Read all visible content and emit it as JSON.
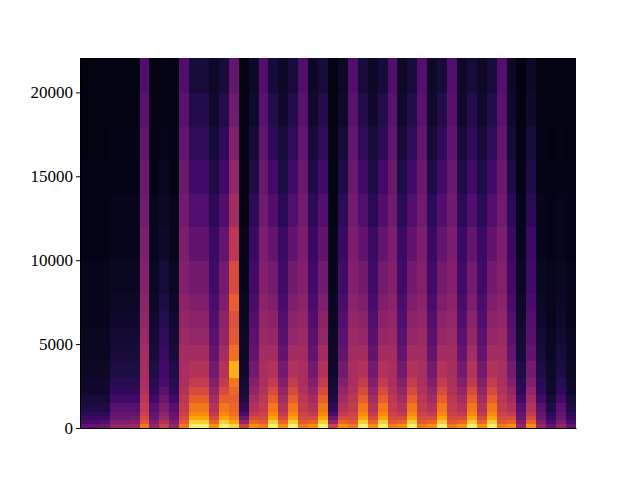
{
  "chart_data": {
    "type": "heatmap",
    "color": "Inferno",
    "z_range": [
      0,
      100
    ],
    "tick_labels": "y",
    "xlim": [
      0,
      50
    ],
    "xticks": [],
    "ylim": [
      0,
      22050
    ],
    "yticks": [
      0,
      5000,
      10000,
      15000,
      20000
    ],
    "y_bins": [
      0,
      250,
      500,
      750,
      1000,
      1500,
      2000,
      2500,
      3000,
      4000,
      5000,
      6000,
      7000,
      8000,
      10000,
      12000,
      14000,
      16000,
      18000,
      20000,
      22050
    ],
    "cells": [
      [
        28,
        22,
        18,
        15,
        12,
        10,
        8,
        8,
        7,
        6,
        6,
        5,
        5,
        5,
        4,
        4,
        4,
        3,
        3,
        3
      ],
      [
        28,
        22,
        18,
        15,
        12,
        10,
        8,
        8,
        7,
        6,
        6,
        5,
        5,
        5,
        4,
        4,
        4,
        3,
        3,
        3
      ],
      [
        30,
        24,
        18,
        15,
        12,
        10,
        8,
        8,
        7,
        6,
        6,
        5,
        5,
        5,
        4,
        4,
        4,
        3,
        3,
        3
      ],
      [
        40,
        35,
        30,
        28,
        25,
        20,
        16,
        14,
        12,
        10,
        9,
        8,
        7,
        6,
        5,
        5,
        4,
        4,
        3,
        3
      ],
      [
        40,
        35,
        30,
        28,
        25,
        20,
        16,
        14,
        12,
        10,
        9,
        8,
        7,
        6,
        5,
        5,
        4,
        4,
        3,
        3
      ],
      [
        42,
        36,
        32,
        28,
        25,
        20,
        16,
        14,
        12,
        10,
        9,
        8,
        7,
        6,
        5,
        5,
        4,
        4,
        3,
        3
      ],
      [
        70,
        62,
        58,
        55,
        52,
        50,
        48,
        46,
        45,
        44,
        42,
        40,
        38,
        36,
        34,
        32,
        30,
        28,
        26,
        24
      ],
      [
        40,
        35,
        30,
        28,
        25,
        20,
        16,
        14,
        12,
        10,
        9,
        8,
        7,
        6,
        5,
        5,
        4,
        4,
        3,
        3
      ],
      [
        55,
        48,
        42,
        38,
        34,
        30,
        26,
        22,
        20,
        18,
        16,
        14,
        12,
        10,
        8,
        7,
        6,
        5,
        4,
        4
      ],
      [
        40,
        35,
        30,
        28,
        25,
        20,
        16,
        14,
        12,
        10,
        9,
        8,
        7,
        6,
        5,
        5,
        4,
        4,
        3,
        3
      ],
      [
        70,
        62,
        58,
        55,
        52,
        50,
        48,
        46,
        45,
        44,
        42,
        40,
        38,
        36,
        34,
        32,
        30,
        28,
        26,
        24
      ],
      [
        95,
        88,
        80,
        74,
        70,
        64,
        58,
        52,
        48,
        44,
        40,
        38,
        35,
        32,
        28,
        24,
        20,
        16,
        13,
        10
      ],
      [
        95,
        88,
        80,
        74,
        70,
        64,
        58,
        52,
        48,
        44,
        40,
        38,
        35,
        32,
        28,
        24,
        20,
        16,
        13,
        10
      ],
      [
        75,
        65,
        58,
        52,
        48,
        44,
        40,
        36,
        32,
        28,
        26,
        24,
        22,
        20,
        18,
        15,
        12,
        10,
        8,
        7
      ],
      [
        95,
        88,
        80,
        74,
        70,
        64,
        58,
        52,
        48,
        44,
        40,
        38,
        35,
        32,
        28,
        24,
        20,
        16,
        13,
        10
      ],
      [
        90,
        80,
        72,
        68,
        66,
        64,
        66,
        70,
        82,
        68,
        62,
        60,
        64,
        58,
        50,
        44,
        40,
        36,
        32,
        28
      ],
      [
        55,
        40,
        30,
        22,
        16,
        12,
        10,
        9,
        8,
        7,
        7,
        6,
        6,
        5,
        5,
        4,
        4,
        4,
        3,
        3
      ],
      [
        75,
        65,
        58,
        52,
        48,
        44,
        40,
        36,
        32,
        28,
        26,
        24,
        22,
        20,
        18,
        15,
        12,
        10,
        8,
        7
      ],
      [
        70,
        62,
        58,
        55,
        52,
        50,
        48,
        46,
        45,
        44,
        42,
        40,
        38,
        36,
        34,
        32,
        30,
        28,
        26,
        24
      ],
      [
        95,
        88,
        80,
        74,
        70,
        64,
        58,
        52,
        48,
        44,
        40,
        38,
        35,
        32,
        28,
        24,
        20,
        16,
        13,
        10
      ],
      [
        75,
        65,
        58,
        52,
        48,
        44,
        40,
        36,
        32,
        28,
        26,
        24,
        22,
        20,
        18,
        15,
        12,
        10,
        8,
        7
      ],
      [
        95,
        88,
        80,
        74,
        70,
        64,
        58,
        52,
        48,
        44,
        40,
        38,
        35,
        32,
        28,
        24,
        20,
        16,
        13,
        10
      ],
      [
        70,
        62,
        58,
        55,
        52,
        50,
        48,
        46,
        45,
        44,
        42,
        40,
        38,
        36,
        34,
        32,
        30,
        28,
        26,
        24
      ],
      [
        75,
        65,
        58,
        52,
        48,
        44,
        40,
        36,
        32,
        28,
        26,
        24,
        22,
        20,
        18,
        15,
        12,
        10,
        8,
        7
      ],
      [
        95,
        88,
        80,
        74,
        70,
        64,
        58,
        52,
        48,
        44,
        40,
        38,
        35,
        32,
        28,
        24,
        20,
        16,
        13,
        10
      ],
      [
        55,
        40,
        30,
        22,
        16,
        12,
        10,
        9,
        8,
        7,
        7,
        6,
        6,
        5,
        5,
        4,
        4,
        4,
        3,
        3
      ],
      [
        75,
        65,
        58,
        52,
        48,
        44,
        40,
        36,
        32,
        28,
        26,
        24,
        22,
        20,
        18,
        15,
        12,
        10,
        8,
        7
      ],
      [
        70,
        62,
        58,
        55,
        52,
        50,
        48,
        46,
        45,
        44,
        42,
        40,
        38,
        36,
        34,
        32,
        30,
        28,
        26,
        24
      ],
      [
        95,
        88,
        80,
        74,
        70,
        64,
        58,
        52,
        48,
        44,
        40,
        38,
        35,
        32,
        28,
        24,
        20,
        16,
        13,
        10
      ],
      [
        75,
        65,
        58,
        52,
        48,
        44,
        40,
        36,
        32,
        28,
        26,
        24,
        22,
        20,
        18,
        15,
        12,
        10,
        8,
        7
      ],
      [
        95,
        88,
        80,
        74,
        70,
        64,
        58,
        52,
        48,
        44,
        40,
        38,
        35,
        32,
        28,
        24,
        20,
        16,
        13,
        10
      ],
      [
        70,
        62,
        58,
        55,
        52,
        50,
        48,
        46,
        45,
        44,
        42,
        40,
        38,
        36,
        34,
        32,
        30,
        28,
        26,
        24
      ],
      [
        75,
        65,
        58,
        52,
        48,
        44,
        40,
        36,
        32,
        28,
        26,
        24,
        22,
        20,
        18,
        15,
        12,
        10,
        8,
        7
      ],
      [
        95,
        88,
        80,
        74,
        70,
        64,
        58,
        52,
        48,
        44,
        40,
        38,
        35,
        32,
        28,
        24,
        20,
        16,
        13,
        10
      ],
      [
        70,
        62,
        58,
        55,
        52,
        50,
        48,
        46,
        45,
        44,
        42,
        40,
        38,
        36,
        34,
        32,
        30,
        28,
        26,
        24
      ],
      [
        75,
        65,
        58,
        52,
        48,
        44,
        40,
        36,
        32,
        28,
        26,
        24,
        22,
        20,
        18,
        15,
        12,
        10,
        8,
        7
      ],
      [
        95,
        88,
        80,
        74,
        70,
        64,
        58,
        52,
        48,
        44,
        40,
        38,
        35,
        32,
        28,
        24,
        20,
        16,
        13,
        10
      ],
      [
        70,
        62,
        58,
        55,
        52,
        50,
        48,
        46,
        45,
        44,
        42,
        40,
        38,
        36,
        34,
        32,
        30,
        28,
        26,
        24
      ],
      [
        75,
        65,
        58,
        52,
        48,
        44,
        40,
        36,
        32,
        28,
        26,
        24,
        22,
        20,
        18,
        15,
        12,
        10,
        8,
        7
      ],
      [
        95,
        88,
        80,
        74,
        70,
        64,
        58,
        52,
        48,
        44,
        40,
        38,
        35,
        32,
        28,
        24,
        20,
        16,
        13,
        10
      ],
      [
        75,
        65,
        58,
        52,
        48,
        44,
        40,
        36,
        32,
        28,
        26,
        24,
        22,
        20,
        18,
        15,
        12,
        10,
        8,
        7
      ],
      [
        95,
        88,
        80,
        74,
        70,
        64,
        58,
        52,
        48,
        44,
        40,
        38,
        35,
        32,
        28,
        24,
        20,
        16,
        13,
        10
      ],
      [
        70,
        62,
        58,
        55,
        52,
        50,
        48,
        46,
        45,
        44,
        42,
        40,
        38,
        36,
        34,
        32,
        30,
        28,
        26,
        24
      ],
      [
        75,
        65,
        58,
        52,
        48,
        44,
        40,
        36,
        32,
        28,
        26,
        24,
        22,
        20,
        18,
        15,
        12,
        10,
        8,
        7
      ],
      [
        40,
        35,
        30,
        28,
        25,
        20,
        16,
        14,
        12,
        10,
        9,
        8,
        7,
        6,
        5,
        5,
        4,
        4,
        3,
        3
      ],
      [
        75,
        65,
        58,
        52,
        48,
        44,
        40,
        36,
        32,
        28,
        26,
        24,
        22,
        20,
        18,
        15,
        12,
        10,
        8,
        7
      ],
      [
        40,
        35,
        30,
        28,
        25,
        20,
        16,
        14,
        12,
        10,
        9,
        8,
        7,
        6,
        5,
        5,
        4,
        4,
        3,
        3
      ],
      [
        28,
        22,
        18,
        15,
        12,
        10,
        8,
        8,
        7,
        6,
        6,
        5,
        5,
        5,
        4,
        4,
        4,
        3,
        3,
        3
      ],
      [
        40,
        35,
        30,
        28,
        25,
        20,
        16,
        14,
        12,
        10,
        9,
        8,
        7,
        6,
        5,
        5,
        4,
        4,
        3,
        3
      ],
      [
        28,
        22,
        18,
        15,
        12,
        10,
        8,
        8,
        7,
        6,
        6,
        5,
        5,
        5,
        4,
        4,
        4,
        3,
        3,
        3
      ]
    ]
  }
}
